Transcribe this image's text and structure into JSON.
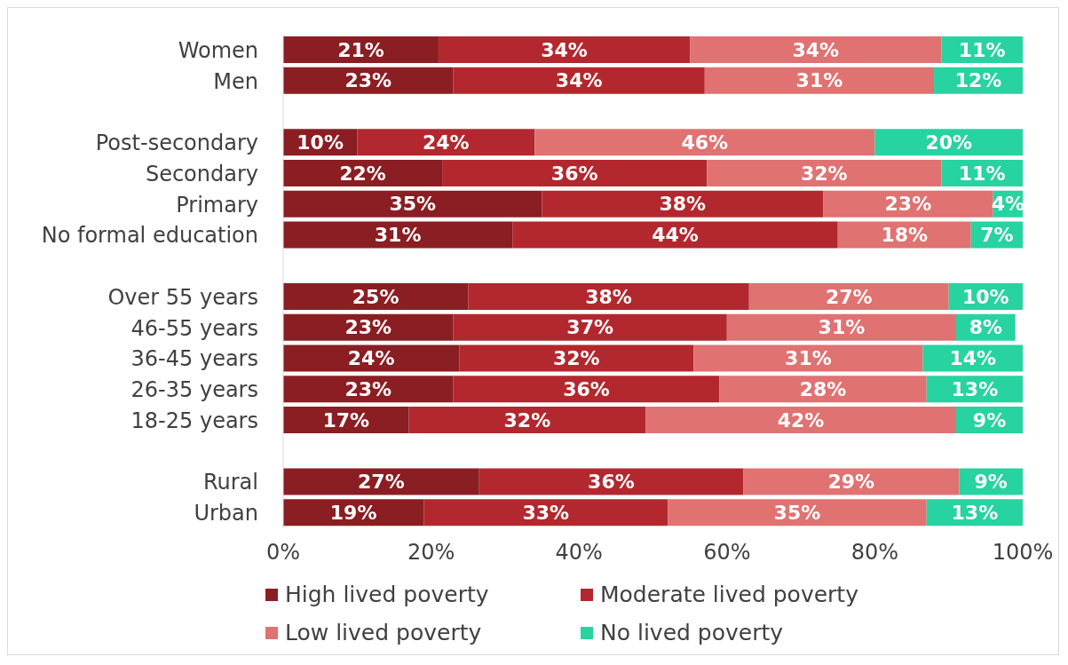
{
  "chart_data": {
    "type": "bar",
    "orientation": "horizontal",
    "stacked": true,
    "categories": [
      "Women",
      "Men",
      null,
      "Post-secondary",
      "Secondary",
      "Primary",
      "No formal education",
      null,
      "Over 55 years",
      "46-55 years",
      "36-45 years",
      "26-35 years",
      "18-25 years",
      null,
      "Rural",
      "Urban"
    ],
    "series": [
      {
        "name": "High lived poverty",
        "color": "#8b1e23",
        "values": [
          21,
          23,
          null,
          10,
          21.5,
          35,
          31,
          null,
          25,
          23,
          23.8,
          23,
          17,
          null,
          26.5,
          19
        ],
        "value_labels": [
          "21%",
          "23%",
          null,
          "10%",
          "22%",
          "35%",
          "31%",
          null,
          "25%",
          "23%",
          "24%",
          "23%",
          "17%",
          null,
          "27%",
          "19%"
        ]
      },
      {
        "name": "Moderate lived poverty",
        "color": "#b3282e",
        "values": [
          34,
          34,
          null,
          24,
          35.8,
          38,
          44,
          null,
          38,
          37,
          31.7,
          36,
          32,
          null,
          35.7,
          33
        ],
        "value_labels": [
          "34%",
          "34%",
          null,
          "24%",
          "36%",
          "38%",
          "44%",
          null,
          "38%",
          "37%",
          "32%",
          "36%",
          "32%",
          null,
          "36%",
          "33%"
        ]
      },
      {
        "name": "Low lived poverty",
        "color": "#e07272",
        "values": [
          34,
          31,
          null,
          46,
          31.7,
          23,
          18,
          null,
          27,
          31,
          31,
          28,
          42,
          null,
          29.2,
          35
        ],
        "value_labels": [
          "34%",
          "31%",
          null,
          "46%",
          "32%",
          "23%",
          "18%",
          null,
          "27%",
          "31%",
          "31%",
          "28%",
          "42%",
          null,
          "29%",
          "35%"
        ]
      },
      {
        "name": "No lived poverty",
        "color": "#27d3a0",
        "values": [
          11,
          12,
          null,
          20,
          11,
          4,
          7,
          null,
          10,
          8,
          13.5,
          13,
          9,
          null,
          8.6,
          13
        ],
        "value_labels": [
          "11%",
          "12%",
          null,
          "20%",
          "11%",
          "4%",
          "7%",
          null,
          "10%",
          "8%",
          "14%",
          "13%",
          "9%",
          null,
          "9%",
          "13%"
        ]
      }
    ],
    "xlim": [
      0,
      100
    ],
    "xticks": [
      {
        "value": 0,
        "label": "0%"
      },
      {
        "value": 20,
        "label": "20%"
      },
      {
        "value": 40,
        "label": "40%"
      },
      {
        "value": 60,
        "label": "60%"
      },
      {
        "value": 80,
        "label": "80%"
      },
      {
        "value": 100,
        "label": "100%"
      }
    ],
    "grid": false,
    "legend": "bottom"
  }
}
